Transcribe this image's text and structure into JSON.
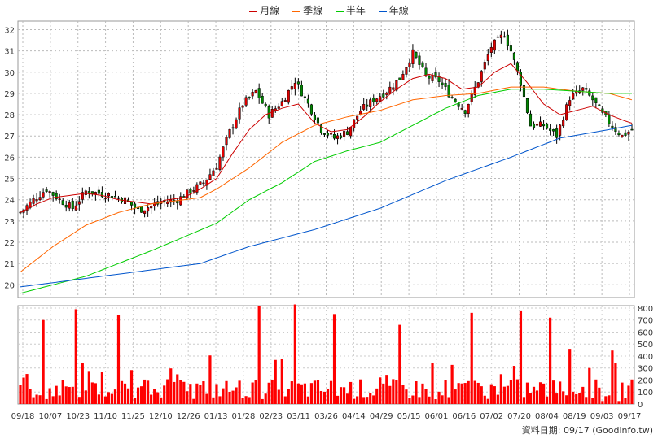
{
  "legend": [
    {
      "label": "月線",
      "color": "#cc0000"
    },
    {
      "label": "季線",
      "color": "#ff6600"
    },
    {
      "label": "半年",
      "color": "#00cc00"
    },
    {
      "label": "年線",
      "color": "#0055cc"
    }
  ],
  "footer": {
    "label": "資料日期:",
    "date": "09/17",
    "source": "(Goodinfo.tw)"
  },
  "chart_data": {
    "type": "candlestick",
    "price_axis": {
      "ticks": [
        20,
        21,
        22,
        23,
        24,
        25,
        26,
        27,
        28,
        29,
        30,
        31,
        32
      ],
      "ylim": [
        19.4,
        32.4
      ]
    },
    "volume_axis": {
      "ticks": [
        0,
        100,
        200,
        300,
        400,
        500,
        600,
        700,
        800
      ],
      "ylim": [
        0,
        820
      ]
    },
    "x_ticks": [
      "09/18",
      "10/07",
      "10/23",
      "11/10",
      "11/25",
      "12/10",
      "12/26",
      "01/13",
      "01/28",
      "02/23",
      "03/11",
      "03/26",
      "04/14",
      "04/29",
      "05/15",
      "06/01",
      "06/16",
      "07/02",
      "07/20",
      "08/04",
      "08/19",
      "09/03",
      "09/17"
    ],
    "close_anchors": [
      [
        0,
        23.4
      ],
      [
        4,
        24.0
      ],
      [
        8,
        24.5
      ],
      [
        12,
        24.0
      ],
      [
        16,
        23.6
      ],
      [
        20,
        24.4
      ],
      [
        24,
        24.3
      ],
      [
        28,
        24.2
      ],
      [
        32,
        24.0
      ],
      [
        36,
        23.5
      ],
      [
        40,
        23.7
      ],
      [
        44,
        23.9
      ],
      [
        48,
        24.0
      ],
      [
        52,
        24.4
      ],
      [
        56,
        24.8
      ],
      [
        60,
        25.6
      ],
      [
        64,
        27.2
      ],
      [
        68,
        28.5
      ],
      [
        72,
        29.1
      ],
      [
        76,
        28.0
      ],
      [
        80,
        28.6
      ],
      [
        84,
        29.6
      ],
      [
        88,
        28.5
      ],
      [
        92,
        27.3
      ],
      [
        96,
        26.9
      ],
      [
        100,
        27.2
      ],
      [
        104,
        28.2
      ],
      [
        108,
        28.7
      ],
      [
        112,
        29.1
      ],
      [
        116,
        29.7
      ],
      [
        120,
        30.9
      ],
      [
        124,
        29.8
      ],
      [
        128,
        29.6
      ],
      [
        132,
        28.8
      ],
      [
        136,
        28.2
      ],
      [
        140,
        29.6
      ],
      [
        144,
        31.2
      ],
      [
        148,
        31.8
      ],
      [
        150,
        31.0
      ],
      [
        153,
        29.5
      ],
      [
        156,
        27.5
      ],
      [
        160,
        27.5
      ],
      [
        164,
        27.0
      ],
      [
        168,
        28.8
      ],
      [
        172,
        29.2
      ],
      [
        175,
        28.7
      ],
      [
        178,
        28.0
      ],
      [
        182,
        27.3
      ],
      [
        184,
        27.0
      ],
      [
        187,
        27.3
      ]
    ],
    "volume_spikes": [
      [
        7,
        700
      ],
      [
        17,
        790
      ],
      [
        30,
        740
      ],
      [
        73,
        820
      ],
      [
        84,
        830
      ],
      [
        96,
        750
      ],
      [
        116,
        660
      ],
      [
        138,
        760
      ],
      [
        153,
        780
      ],
      [
        162,
        720
      ],
      [
        168,
        460
      ],
      [
        174,
        300
      ]
    ],
    "series": [
      {
        "name": "月線",
        "color": "#cc0000",
        "points": [
          [
            0,
            23.4
          ],
          [
            5,
            23.8
          ],
          [
            10,
            24.1
          ],
          [
            15,
            24.2
          ],
          [
            20,
            24.3
          ],
          [
            25,
            24.2
          ],
          [
            30,
            24.0
          ],
          [
            35,
            23.9
          ],
          [
            40,
            23.8
          ],
          [
            45,
            24.0
          ],
          [
            50,
            24.1
          ],
          [
            55,
            24.5
          ],
          [
            60,
            25.0
          ],
          [
            65,
            26.2
          ],
          [
            70,
            27.3
          ],
          [
            75,
            28.0
          ],
          [
            80,
            28.3
          ],
          [
            85,
            28.5
          ],
          [
            90,
            27.6
          ],
          [
            95,
            27.2
          ],
          [
            100,
            27.3
          ],
          [
            105,
            27.9
          ],
          [
            110,
            28.6
          ],
          [
            115,
            29.2
          ],
          [
            120,
            29.7
          ],
          [
            125,
            29.9
          ],
          [
            130,
            29.7
          ],
          [
            135,
            29.2
          ],
          [
            140,
            29.3
          ],
          [
            145,
            30.0
          ],
          [
            150,
            30.4
          ],
          [
            155,
            29.5
          ],
          [
            160,
            28.5
          ],
          [
            165,
            28.0
          ],
          [
            170,
            28.2
          ],
          [
            175,
            28.4
          ],
          [
            180,
            28.0
          ],
          [
            185,
            27.7
          ],
          [
            187,
            27.6
          ]
        ]
      },
      {
        "name": "季線",
        "color": "#ff6600",
        "points": [
          [
            0,
            20.6
          ],
          [
            10,
            21.8
          ],
          [
            20,
            22.8
          ],
          [
            30,
            23.4
          ],
          [
            40,
            23.8
          ],
          [
            50,
            24.0
          ],
          [
            55,
            24.1
          ],
          [
            60,
            24.5
          ],
          [
            70,
            25.5
          ],
          [
            80,
            26.7
          ],
          [
            90,
            27.5
          ],
          [
            100,
            27.9
          ],
          [
            110,
            28.2
          ],
          [
            120,
            28.7
          ],
          [
            130,
            28.9
          ],
          [
            140,
            29.0
          ],
          [
            150,
            29.3
          ],
          [
            160,
            29.3
          ],
          [
            170,
            29.1
          ],
          [
            180,
            29.0
          ],
          [
            187,
            28.7
          ]
        ]
      },
      {
        "name": "半年",
        "color": "#00cc00",
        "points": [
          [
            0,
            19.6
          ],
          [
            20,
            20.4
          ],
          [
            40,
            21.6
          ],
          [
            60,
            22.9
          ],
          [
            70,
            24.0
          ],
          [
            80,
            24.8
          ],
          [
            90,
            25.8
          ],
          [
            100,
            26.3
          ],
          [
            110,
            26.7
          ],
          [
            120,
            27.5
          ],
          [
            130,
            28.3
          ],
          [
            140,
            28.9
          ],
          [
            150,
            29.2
          ],
          [
            160,
            29.2
          ],
          [
            170,
            29.1
          ],
          [
            180,
            29.0
          ],
          [
            187,
            29.0
          ]
        ]
      },
      {
        "name": "年線",
        "color": "#0055cc",
        "points": [
          [
            0,
            19.9
          ],
          [
            20,
            20.3
          ],
          [
            40,
            20.7
          ],
          [
            55,
            21.0
          ],
          [
            70,
            21.8
          ],
          [
            90,
            22.6
          ],
          [
            110,
            23.6
          ],
          [
            130,
            24.9
          ],
          [
            150,
            26.0
          ],
          [
            165,
            26.9
          ],
          [
            180,
            27.3
          ],
          [
            187,
            27.5
          ]
        ]
      }
    ]
  }
}
